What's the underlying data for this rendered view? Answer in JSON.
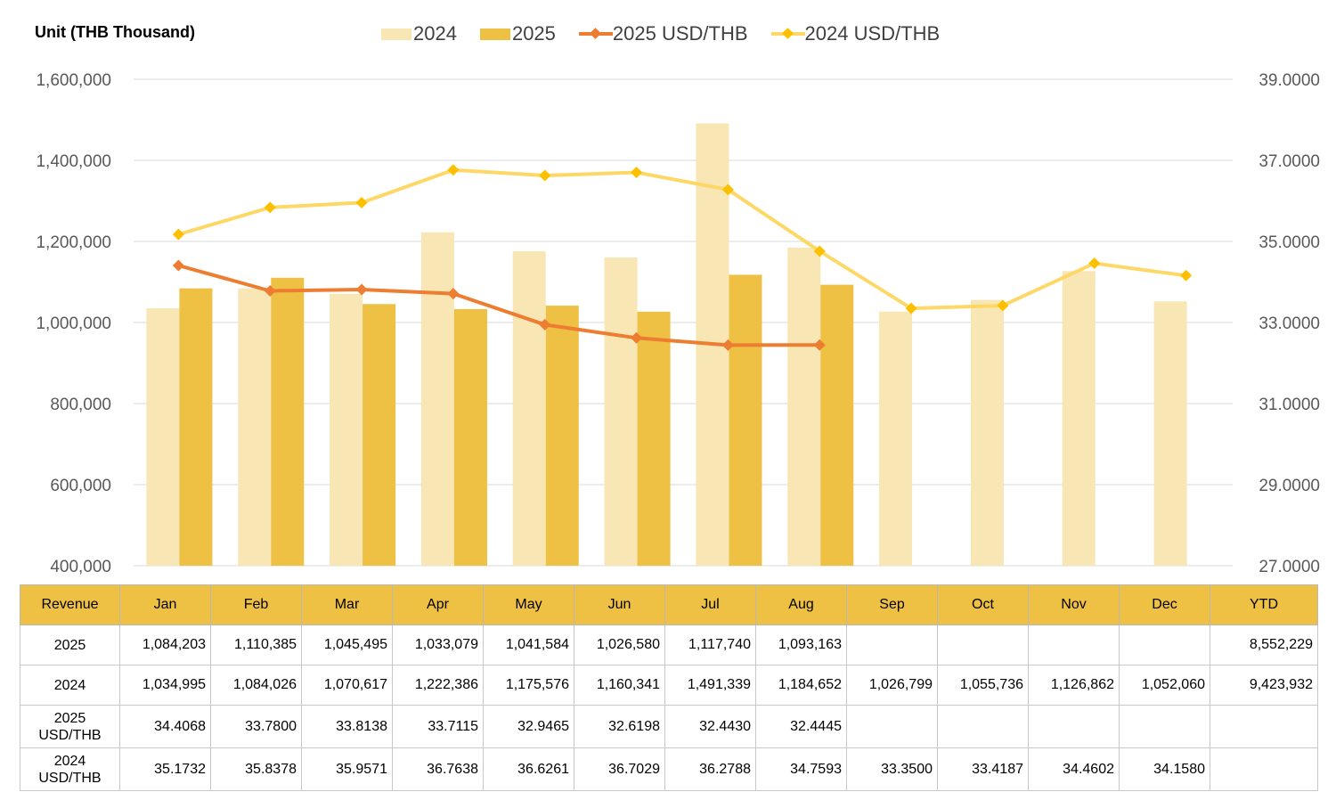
{
  "header": {
    "unit_label": "Unit (THB  Thousand)"
  },
  "colors": {
    "bar_2024": "#f8e6b5",
    "bar_2025": "#eec043",
    "line_2025": "#ed7d31",
    "line_2024_line": "#fdd867",
    "line_2024_marker": "#fdc000",
    "grid": "#d9d9d9",
    "table_header": "#eec043"
  },
  "chart_data": {
    "type": "bar",
    "categories": [
      "Jan",
      "Feb",
      "Mar",
      "Apr",
      "May",
      "Jun",
      "Jul",
      "Aug",
      "Sep",
      "Oct",
      "Nov",
      "Dec"
    ],
    "series": [
      {
        "name": "2024",
        "kind": "bar",
        "axis": "left",
        "values": [
          1034995,
          1084026,
          1070617,
          1222386,
          1175576,
          1160341,
          1491339,
          1184652,
          1026799,
          1055736,
          1126862,
          1052060
        ]
      },
      {
        "name": "2025",
        "kind": "bar",
        "axis": "left",
        "values": [
          1084203,
          1110385,
          1045495,
          1033079,
          1041584,
          1026580,
          1117740,
          1093163,
          null,
          null,
          null,
          null
        ]
      },
      {
        "name": "2025 USD/THB",
        "kind": "line",
        "axis": "right",
        "values": [
          34.4068,
          33.78,
          33.8138,
          33.7115,
          32.9465,
          32.6198,
          32.443,
          32.4445,
          null,
          null,
          null,
          null
        ]
      },
      {
        "name": "2024 USD/THB",
        "kind": "line",
        "axis": "right",
        "values": [
          35.1732,
          35.8378,
          35.9571,
          36.7638,
          36.6261,
          36.7029,
          36.2788,
          34.7593,
          33.35,
          33.4187,
          34.4602,
          34.158
        ]
      }
    ],
    "y_left": {
      "range": [
        400000,
        1600000
      ],
      "ticks": [
        "1,600,000",
        "1,400,000",
        "1,200,000",
        "1,000,000",
        "800,000",
        "600,000",
        "400,000"
      ]
    },
    "y_right": {
      "range": [
        27,
        39
      ],
      "ticks": [
        "39.0000",
        "37.0000",
        "35.0000",
        "33.0000",
        "31.0000",
        "29.0000",
        "27.0000"
      ]
    },
    "grid": true,
    "legend_position": "top"
  },
  "table": {
    "headers": [
      "Revenue",
      "Jan",
      "Feb",
      "Mar",
      "Apr",
      "May",
      "Jun",
      "Jul",
      "Aug",
      "Sep",
      "Oct",
      "Nov",
      "Dec",
      "YTD"
    ],
    "rows": [
      {
        "label": "2025",
        "cells": [
          "1,084,203",
          "1,110,385",
          "1,045,495",
          "1,033,079",
          "1,041,584",
          "1,026,580",
          "1,117,740",
          "1,093,163",
          "",
          "",
          "",
          "",
          "8,552,229"
        ]
      },
      {
        "label": "2024",
        "cells": [
          "1,034,995",
          "1,084,026",
          "1,070,617",
          "1,222,386",
          "1,175,576",
          "1,160,341",
          "1,491,339",
          "1,184,652",
          "1,026,799",
          "1,055,736",
          "1,126,862",
          "1,052,060",
          "9,423,932"
        ]
      },
      {
        "label": "2025\nUSD/THB",
        "cells": [
          "34.4068",
          "33.7800",
          "33.8138",
          "33.7115",
          "32.9465",
          "32.6198",
          "32.4430",
          "32.4445",
          "",
          "",
          "",
          "",
          ""
        ]
      },
      {
        "label": "2024\nUSD/THB",
        "cells": [
          "35.1732",
          "35.8378",
          "35.9571",
          "36.7638",
          "36.6261",
          "36.7029",
          "36.2788",
          "34.7593",
          "33.3500",
          "33.4187",
          "34.4602",
          "34.1580",
          ""
        ]
      }
    ]
  }
}
